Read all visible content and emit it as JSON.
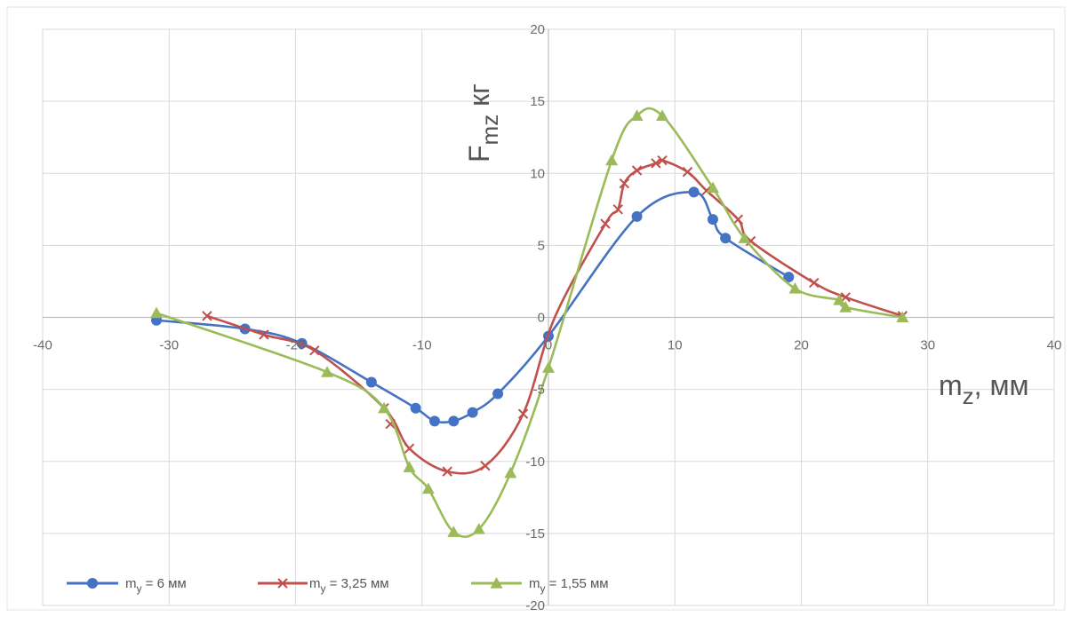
{
  "chart_data": {
    "type": "scatter",
    "title": "",
    "xlabel": "m",
    "xlabel_sub": "z",
    "xlabel_suffix": ", мм",
    "ylabel": "F",
    "ylabel_sub": "mz",
    "ylabel_suffix": " кг",
    "xlim": [
      -40,
      40
    ],
    "ylim": [
      -20,
      20
    ],
    "xticks": [
      -40,
      -30,
      -20,
      -10,
      0,
      10,
      20,
      30,
      40
    ],
    "yticks": [
      -20,
      -15,
      -10,
      -5,
      0,
      5,
      10,
      15,
      20
    ],
    "grid": true,
    "legend_position": "bottom-left",
    "series": [
      {
        "name": "m",
        "name_sub": "y",
        "name_suffix": " = 6 мм",
        "color": "#4472c4",
        "marker": "circle",
        "x": [
          -31,
          -24,
          -19.5,
          -14,
          -10.5,
          -9,
          -7.5,
          -6,
          -4,
          0,
          7,
          11.5,
          13,
          14,
          19
        ],
        "y": [
          -0.2,
          -0.8,
          -1.8,
          -4.5,
          -6.3,
          -7.2,
          -7.2,
          -6.6,
          -5.3,
          -1.3,
          7,
          8.7,
          6.8,
          5.5,
          2.8
        ]
      },
      {
        "name": "m",
        "name_sub": "y",
        "name_suffix": " = 3,25 мм",
        "color": "#c0504d",
        "marker": "x",
        "x": [
          -27,
          -22.5,
          -18.5,
          -13,
          -12.5,
          -11,
          -8,
          -5,
          -2,
          4.5,
          5.5,
          6,
          7,
          8.5,
          9,
          11,
          12.5,
          15,
          16,
          21,
          23.5,
          28
        ],
        "y": [
          0.1,
          -1.2,
          -2.3,
          -6.3,
          -7.4,
          -9.1,
          -10.7,
          -10.3,
          -6.7,
          6.5,
          7.5,
          9.3,
          10.2,
          10.7,
          10.9,
          10.1,
          8.8,
          6.8,
          5.3,
          2.4,
          1.4,
          0.1
        ],
        "curve_x": [
          -27,
          -22.5,
          -18.5,
          -13,
          -11,
          -8,
          -5,
          -2,
          0.5,
          4.5,
          5.5,
          6,
          7,
          8.5,
          9,
          11,
          12.5,
          15,
          16,
          21,
          23.5,
          28
        ],
        "curve_y": [
          0.1,
          -1.2,
          -2.3,
          -6.3,
          -9.1,
          -10.7,
          -10.3,
          -6.7,
          0,
          6.5,
          7.5,
          9.3,
          10.2,
          10.7,
          10.9,
          10.1,
          8.8,
          6.8,
          5.3,
          2.4,
          1.4,
          0.1
        ]
      },
      {
        "name": "m",
        "name_sub": "y",
        "name_suffix": " = 1,55 мм",
        "color": "#9bbb59",
        "marker": "triangle",
        "x": [
          -31,
          -17.5,
          -13,
          -11,
          -9.5,
          -7.5,
          -5.5,
          -3,
          0,
          5,
          7,
          9,
          13,
          15.5,
          19.5,
          23,
          23.5,
          28
        ],
        "y": [
          0.3,
          -3.8,
          -6.3,
          -10.4,
          -11.9,
          -14.9,
          -14.7,
          -10.8,
          -3.5,
          10.9,
          14,
          14,
          9,
          5.5,
          2,
          1.2,
          0.7,
          0
        ],
        "curve_x": [
          -31,
          -17.5,
          -13,
          -11,
          -9.5,
          -7.5,
          -5.5,
          -3,
          0,
          5,
          7,
          9,
          13,
          15.5,
          19.5,
          23,
          23.5,
          28
        ],
        "curve_y": [
          0.3,
          -3.8,
          -6.3,
          -10.4,
          -11.9,
          -14.9,
          -14.7,
          -10.8,
          -3.5,
          10.9,
          14,
          14,
          9,
          5.5,
          2,
          1.2,
          0.7,
          0
        ]
      }
    ]
  }
}
